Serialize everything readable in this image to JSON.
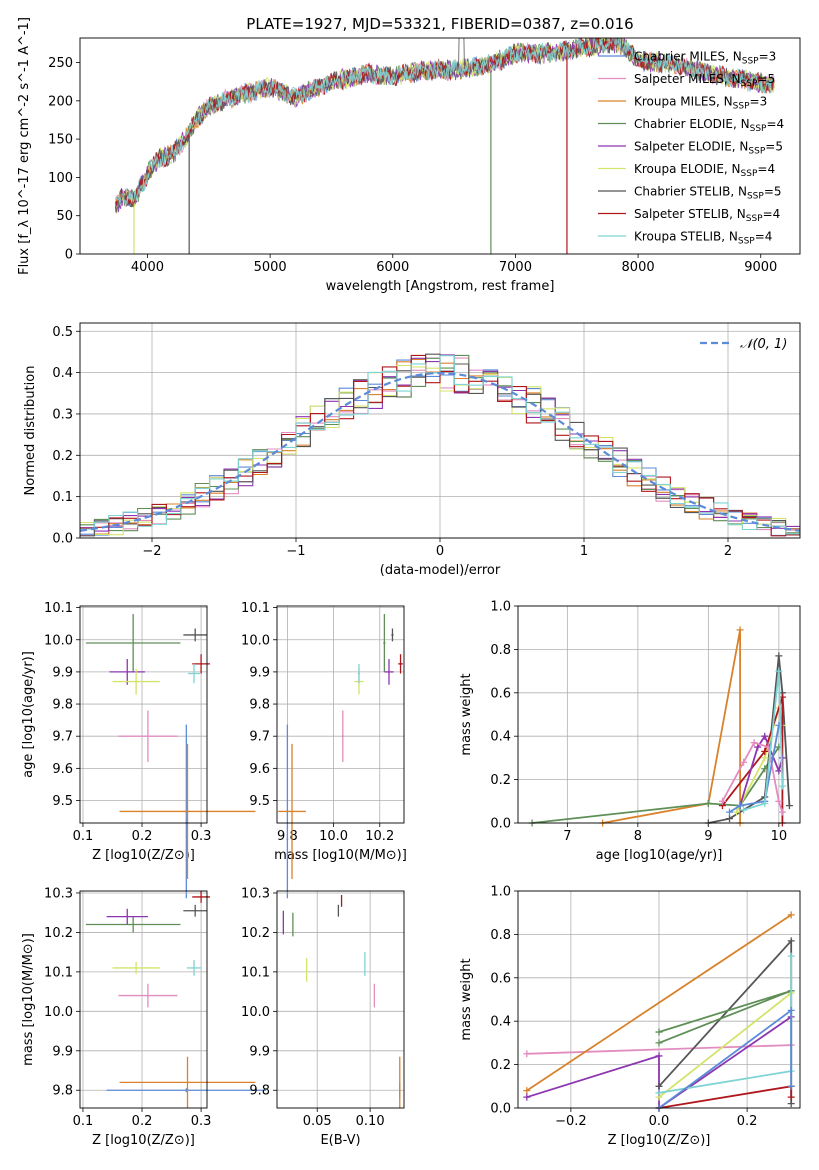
{
  "title": "PLATE=1927, MJD=53321, FIBERID=0387, z=0.016",
  "colors": {
    "Chabrier MILES": "#5b8bd9",
    "Salpeter MILES": "#e38cc0",
    "Kroupa MILES": "#d9822b",
    "Chabrier ELODIE": "#5f8f57",
    "Salpeter ELODIE": "#8e35b0",
    "Kroupa ELODIE": "#d4e36a",
    "Chabrier STELIB": "#555555",
    "Salpeter STELIB": "#b0171c",
    "Kroupa STELIB": "#7fd3d3"
  },
  "legend_spectrum": [
    {
      "name": "Chabrier MILES",
      "n": "3"
    },
    {
      "name": "Salpeter MILES",
      "n": "5"
    },
    {
      "name": "Kroupa MILES",
      "n": "3"
    },
    {
      "name": "Chabrier ELODIE",
      "n": "4"
    },
    {
      "name": "Salpeter ELODIE",
      "n": "5"
    },
    {
      "name": "Kroupa ELODIE",
      "n": "4"
    },
    {
      "name": "Chabrier STELIB",
      "n": "5"
    },
    {
      "name": "Salpeter STELIB",
      "n": "4"
    },
    {
      "name": "Kroupa STELIB",
      "n": "4"
    }
  ],
  "chart_data": [
    {
      "id": "spectrum",
      "type": "line",
      "xlabel": "wavelength [Angstrom, rest frame]",
      "ylabel": "Flux [f_λ 10^-17 erg cm^-2 s^-1 A^-1]",
      "xlim": [
        3450,
        9320
      ],
      "ylim": [
        0,
        282
      ],
      "xticks": [
        4000,
        5000,
        6000,
        7000,
        8000,
        9000
      ],
      "yticks": [
        0,
        50,
        100,
        150,
        200,
        250
      ],
      "continuum": {
        "x": [
          3750,
          3800,
          3900,
          4000,
          4100,
          4200,
          4300,
          4400,
          4500,
          4700,
          5000,
          5200,
          5500,
          5800,
          6000,
          6300,
          6500,
          6800,
          7000,
          7300,
          7500,
          7800,
          7900,
          8000,
          8300,
          8600,
          8900,
          9100
        ],
        "y": [
          65,
          75,
          72,
          105,
          125,
          130,
          148,
          175,
          192,
          205,
          218,
          205,
          225,
          235,
          232,
          240,
          240,
          248,
          262,
          262,
          268,
          276,
          270,
          252,
          248,
          235,
          226,
          222
        ]
      },
      "grid": false
    },
    {
      "id": "residuals",
      "type": "line",
      "xlabel": "(data-model)/error",
      "ylabel": "Normed distribution",
      "xlim": [
        -2.5,
        2.5
      ],
      "ylim": [
        0,
        0.52
      ],
      "xticks": [
        -2,
        -1,
        0,
        1,
        2
      ],
      "yticks": [
        0.0,
        0.1,
        0.2,
        0.3,
        0.4,
        0.5
      ],
      "legend": "𝒩(0, 1)",
      "legend_position": "top-right",
      "grid": true,
      "bin_width": 0.1
    },
    {
      "id": "z-age",
      "type": "scatter",
      "xlabel": "Z [log10(Z/Z⊙)]",
      "ylabel": "age  [log10(age/yr)]",
      "xlim": [
        0.095,
        0.31
      ],
      "ylim": [
        9.43,
        10.105
      ],
      "xticks": [
        0.1,
        0.2,
        0.3
      ],
      "yticks": [
        9.5,
        9.6,
        9.7,
        9.8,
        9.9,
        10.0,
        10.1
      ],
      "points": [
        {
          "model": "Chabrier MILES",
          "x": 0.275,
          "y": 9.466,
          "xerr": 0.005,
          "yerr": 0.27
        },
        {
          "model": "Salpeter MILES",
          "x": 0.21,
          "y": 9.7,
          "xerr": 0.05,
          "yerr": 0.08
        },
        {
          "model": "Kroupa MILES",
          "x": 0.277,
          "y": 9.466,
          "xerr": 0.115,
          "yerr": 0.21
        },
        {
          "model": "Chabrier ELODIE",
          "x": 0.185,
          "y": 9.99,
          "xerr": 0.08,
          "yerr": 0.09
        },
        {
          "model": "Salpeter ELODIE",
          "x": 0.175,
          "y": 9.9,
          "xerr": 0.03,
          "yerr": 0.04
        },
        {
          "model": "Kroupa ELODIE",
          "x": 0.19,
          "y": 9.87,
          "xerr": 0.04,
          "yerr": 0.04
        },
        {
          "model": "Chabrier STELIB",
          "x": 0.29,
          "y": 10.015,
          "xerr": 0.02,
          "yerr": 0.02
        },
        {
          "model": "Salpeter STELIB",
          "x": 0.3,
          "y": 9.925,
          "xerr": 0.015,
          "yerr": 0.03
        },
        {
          "model": "Kroupa STELIB",
          "x": 0.288,
          "y": 9.895,
          "xerr": 0.01,
          "yerr": 0.03
        }
      ]
    },
    {
      "id": "mass-age",
      "type": "scatter",
      "xlabel": "mass [log10(M/M⊙)]",
      "ylabel": "",
      "xlim": [
        9.755,
        10.305
      ],
      "ylim": [
        9.43,
        10.105
      ],
      "xticks": [
        9.8,
        10.0,
        10.2
      ],
      "yticks": [
        9.5,
        9.6,
        9.7,
        9.8,
        9.9,
        10.0,
        10.1
      ],
      "points": [
        {
          "model": "Chabrier MILES",
          "x": 9.8,
          "y": 9.466,
          "xerr": 0.005,
          "yerr": 0.27
        },
        {
          "model": "Salpeter MILES",
          "x": 10.04,
          "y": 9.7,
          "xerr": 0.005,
          "yerr": 0.08
        },
        {
          "model": "Kroupa MILES",
          "x": 9.82,
          "y": 9.466,
          "xerr": 0.06,
          "yerr": 0.21
        },
        {
          "model": "Chabrier ELODIE",
          "x": 10.22,
          "y": 9.99,
          "xerr": 0.005,
          "yerr": 0.09
        },
        {
          "model": "Salpeter ELODIE",
          "x": 10.24,
          "y": 9.9,
          "xerr": 0.02,
          "yerr": 0.04
        },
        {
          "model": "Kroupa ELODIE",
          "x": 10.11,
          "y": 9.87,
          "xerr": 0.02,
          "yerr": 0.04
        },
        {
          "model": "Chabrier STELIB",
          "x": 10.255,
          "y": 10.015,
          "xerr": 0.005,
          "yerr": 0.02
        },
        {
          "model": "Salpeter STELIB",
          "x": 10.29,
          "y": 9.925,
          "xerr": 0.01,
          "yerr": 0.03
        },
        {
          "model": "Kroupa STELIB",
          "x": 10.11,
          "y": 9.895,
          "xerr": 0.005,
          "yerr": 0.03
        }
      ]
    },
    {
      "id": "age-weight",
      "type": "line",
      "xlabel": "age  [log10(age/yr)]",
      "ylabel": "mass weight",
      "xlim": [
        6.3,
        10.3
      ],
      "ylim": [
        0,
        1.0
      ],
      "xticks": [
        7,
        8,
        9,
        10
      ],
      "yticks": [
        0.0,
        0.2,
        0.4,
        0.6,
        0.8,
        1.0
      ],
      "grid": true,
      "series": [
        {
          "model": "Kroupa MILES",
          "x": [
            7.5,
            9.0,
            9.45,
            9.45
          ],
          "y": [
            0.0,
            0.09,
            0.89,
            0.0
          ]
        },
        {
          "model": "Chabrier ELODIE",
          "x": [
            6.5,
            9.0,
            9.45,
            9.8,
            10.0
          ],
          "y": [
            0.0,
            0.09,
            0.08,
            0.25,
            0.35
          ]
        },
        {
          "model": "Chabrier STELIB",
          "x": [
            9.0,
            9.3,
            9.8,
            10.0,
            10.05,
            10.15
          ],
          "y": [
            0.0,
            0.02,
            0.12,
            0.77,
            0.6,
            0.08
          ]
        },
        {
          "model": "Kroupa ELODIE",
          "x": [
            9.4,
            9.8,
            10.0,
            10.05
          ],
          "y": [
            0.05,
            0.3,
            0.53,
            0.45
          ]
        },
        {
          "model": "Salpeter STELIB",
          "x": [
            9.2,
            9.8,
            10.05,
            10.05
          ],
          "y": [
            0.08,
            0.33,
            0.58,
            0.0
          ]
        },
        {
          "model": "Salpeter ELODIE",
          "x": [
            9.45,
            9.7,
            9.8,
            10.0,
            10.05
          ],
          "y": [
            0.08,
            0.35,
            0.4,
            0.24,
            0.3
          ]
        },
        {
          "model": "Salpeter MILES",
          "x": [
            9.2,
            9.5,
            9.65,
            9.85,
            10.0,
            10.05
          ],
          "y": [
            0.1,
            0.28,
            0.37,
            0.35,
            0.1,
            0.05
          ]
        },
        {
          "model": "Chabrier MILES",
          "x": [
            9.3,
            9.45,
            9.8,
            10.0
          ],
          "y": [
            0.05,
            0.08,
            0.1,
            0.45
          ]
        },
        {
          "model": "Kroupa STELIB",
          "x": [
            9.5,
            9.8,
            10.0,
            10.05
          ],
          "y": [
            0.06,
            0.09,
            0.7,
            0.17
          ]
        }
      ]
    },
    {
      "id": "z-mass",
      "type": "scatter",
      "xlabel": "Z [log10(Z/Z⊙)]",
      "ylabel": "mass [log10(M/M⊙)]",
      "xlim": [
        0.095,
        0.31
      ],
      "ylim": [
        9.755,
        10.305
      ],
      "xticks": [
        0.1,
        0.2,
        0.3
      ],
      "yticks": [
        9.8,
        9.9,
        10.0,
        10.1,
        10.2,
        10.3
      ],
      "points": [
        {
          "model": "Chabrier MILES",
          "x": 0.275,
          "y": 9.8,
          "xerr": 0.135,
          "yerr": 0.005
        },
        {
          "model": "Salpeter MILES",
          "x": 0.21,
          "y": 10.04,
          "xerr": 0.05,
          "yerr": 0.03
        },
        {
          "model": "Kroupa MILES",
          "x": 0.277,
          "y": 9.82,
          "xerr": 0.115,
          "yerr": 0.065
        },
        {
          "model": "Chabrier ELODIE",
          "x": 0.185,
          "y": 10.22,
          "xerr": 0.08,
          "yerr": 0.02
        },
        {
          "model": "Salpeter ELODIE",
          "x": 0.175,
          "y": 10.24,
          "xerr": 0.035,
          "yerr": 0.02
        },
        {
          "model": "Kroupa ELODIE",
          "x": 0.19,
          "y": 10.11,
          "xerr": 0.04,
          "yerr": 0.015
        },
        {
          "model": "Chabrier STELIB",
          "x": 0.29,
          "y": 10.255,
          "xerr": 0.02,
          "yerr": 0.015
        },
        {
          "model": "Salpeter STELIB",
          "x": 0.3,
          "y": 10.29,
          "xerr": 0.015,
          "yerr": 0.015
        },
        {
          "model": "Kroupa STELIB",
          "x": 0.288,
          "y": 10.11,
          "xerr": 0.012,
          "yerr": 0.02
        }
      ]
    },
    {
      "id": "ebv-mass",
      "type": "scatter",
      "xlabel": "E(B-V)",
      "ylabel": "",
      "xlim": [
        0.012,
        0.132
      ],
      "ylim": [
        9.755,
        10.305
      ],
      "xticks": [
        0.05,
        0.1
      ],
      "yticks": [
        9.8,
        9.9,
        10.0,
        10.1,
        10.2,
        10.3
      ],
      "points": [
        {
          "model": "Chabrier MILES",
          "x": 0.128,
          "y": 9.8,
          "xerr": 0.0,
          "yerr": 0.02
        },
        {
          "model": "Salpeter MILES",
          "x": 0.104,
          "y": 10.04,
          "xerr": 0.0,
          "yerr": 0.03
        },
        {
          "model": "Kroupa MILES",
          "x": 0.128,
          "y": 9.82,
          "xerr": 0.0,
          "yerr": 0.065
        },
        {
          "model": "Chabrier ELODIE",
          "x": 0.027,
          "y": 10.22,
          "xerr": 0.0,
          "yerr": 0.03
        },
        {
          "model": "Salpeter ELODIE",
          "x": 0.018,
          "y": 10.225,
          "xerr": 0.0,
          "yerr": 0.03
        },
        {
          "model": "Kroupa ELODIE",
          "x": 0.04,
          "y": 10.105,
          "xerr": 0.0,
          "yerr": 0.03
        },
        {
          "model": "Chabrier STELIB",
          "x": 0.07,
          "y": 10.255,
          "xerr": 0.0,
          "yerr": 0.015
        },
        {
          "model": "Salpeter STELIB",
          "x": 0.073,
          "y": 10.28,
          "xerr": 0.0,
          "yerr": 0.015
        },
        {
          "model": "Kroupa STELIB",
          "x": 0.095,
          "y": 10.12,
          "xerr": 0.0,
          "yerr": 0.03
        }
      ]
    },
    {
      "id": "z-weight",
      "type": "line",
      "xlabel": "Z [log10(Z/Z⊙)]",
      "ylabel": "mass weight",
      "xlim": [
        -0.32,
        0.32
      ],
      "ylim": [
        0,
        1.0
      ],
      "xticks": [
        -0.2,
        0.0,
        0.2
      ],
      "yticks": [
        0.0,
        0.2,
        0.4,
        0.6,
        0.8,
        1.0
      ],
      "grid": true,
      "series": [
        {
          "model": "Salpeter MILES",
          "x": [
            -0.3,
            0.3
          ],
          "y": [
            0.25,
            0.29
          ]
        },
        {
          "model": "Kroupa MILES",
          "x": [
            -0.3,
            0.3
          ],
          "y": [
            0.08,
            0.89
          ]
        },
        {
          "model": "Salpeter ELODIE",
          "x": [
            -0.3,
            0.0,
            0.0,
            0.3
          ],
          "y": [
            0.05,
            0.24,
            0.0,
            0.42
          ]
        },
        {
          "model": "Chabrier STELIB",
          "x": [
            0.0,
            0.3,
            0.3
          ],
          "y": [
            0.1,
            0.77,
            0.02
          ]
        },
        {
          "model": "Kroupa ELODIE",
          "x": [
            0.0,
            0.3
          ],
          "y": [
            0.05,
            0.53
          ]
        },
        {
          "model": "Chabrier ELODIE",
          "x": [
            0.0,
            0.3,
            0.0
          ],
          "y": [
            0.35,
            0.54,
            0.3
          ]
        },
        {
          "model": "Kroupa STELIB",
          "x": [
            0.0,
            0.3,
            0.3
          ],
          "y": [
            0.07,
            0.17,
            0.7
          ]
        },
        {
          "model": "Salpeter STELIB",
          "x": [
            0.0,
            0.3,
            0.3
          ],
          "y": [
            0.0,
            0.1,
            0.05
          ]
        },
        {
          "model": "Chabrier MILES",
          "x": [
            0.0,
            0.3,
            0.3
          ],
          "y": [
            0.0,
            0.45,
            0.1
          ]
        }
      ]
    }
  ]
}
